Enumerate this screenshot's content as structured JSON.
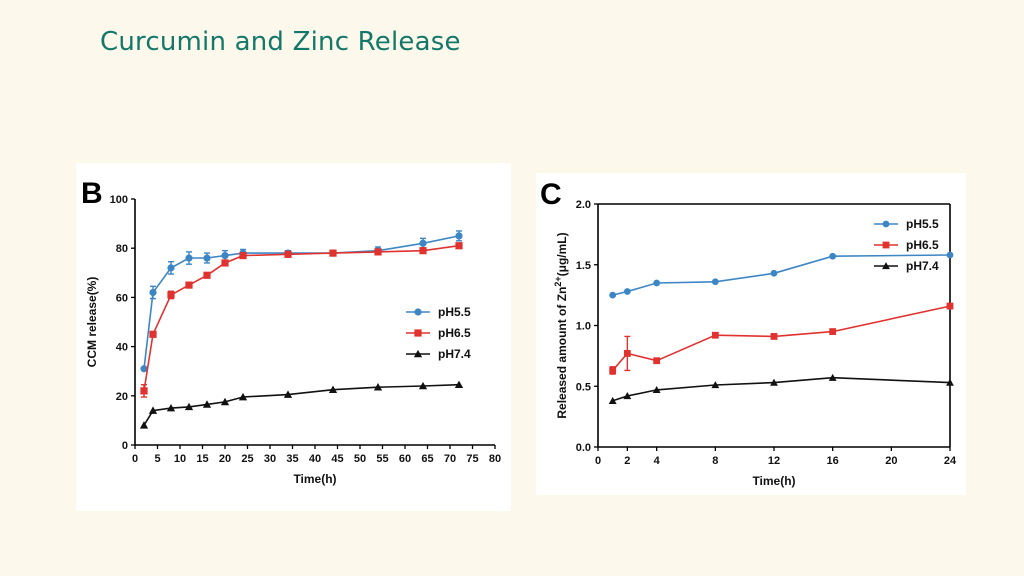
{
  "slide": {
    "title": "Curcumin and Zinc Release"
  },
  "colors": {
    "title": "#13786a",
    "pH5.5": "#3d86c6",
    "pH6.5": "#e0322f",
    "pH7.4": "#111111"
  },
  "chart_data": [
    {
      "panel_label": "B",
      "type": "line",
      "xlabel": "Time(h)",
      "ylabel": "CCM release(%)",
      "xlim": [
        0,
        80
      ],
      "ylim": [
        0,
        100
      ],
      "xticks": [
        0,
        5,
        10,
        15,
        20,
        25,
        30,
        35,
        40,
        45,
        50,
        55,
        60,
        65,
        70,
        75,
        80
      ],
      "yticks": [
        0,
        20,
        40,
        60,
        80,
        100
      ],
      "grid": false,
      "legend_position": "center-right",
      "series": [
        {
          "name": "pH5.5",
          "marker": "circle",
          "x": [
            2,
            4,
            8,
            12,
            16,
            20,
            24,
            34,
            44,
            54,
            64,
            72
          ],
          "y": [
            31,
            62,
            72,
            76,
            76,
            77,
            78,
            78,
            78,
            79,
            82,
            85
          ],
          "err": [
            0,
            2.5,
            2.5,
            2.5,
            2,
            2,
            1.5,
            1,
            1,
            1.5,
            2,
            2
          ]
        },
        {
          "name": "pH6.5",
          "marker": "square",
          "x": [
            2,
            4,
            8,
            12,
            16,
            20,
            24,
            34,
            44,
            54,
            64,
            72
          ],
          "y": [
            22,
            45,
            61,
            65,
            69,
            74,
            77,
            77.5,
            78,
            78.5,
            79,
            81
          ],
          "err": [
            2.5,
            1,
            1.5,
            1,
            1,
            1,
            1,
            1,
            1,
            1,
            1,
            1
          ]
        },
        {
          "name": "pH7.4",
          "marker": "triangle",
          "x": [
            2,
            4,
            8,
            12,
            16,
            20,
            24,
            34,
            44,
            54,
            64,
            72
          ],
          "y": [
            8,
            14,
            15,
            15.5,
            16.5,
            17.5,
            19.5,
            20.5,
            22.5,
            23.5,
            24,
            24.5
          ],
          "err": [
            0,
            0,
            0,
            0,
            0,
            0,
            0,
            0,
            0,
            0,
            0,
            0
          ]
        }
      ]
    },
    {
      "panel_label": "C",
      "type": "line",
      "xlabel": "Time(h)",
      "ylabel_parts": [
        "Released amount of Zn",
        "2+",
        "(μg/mL)"
      ],
      "xlim": [
        0,
        24
      ],
      "ylim": [
        0,
        2.0
      ],
      "xticks": [
        0,
        2,
        4,
        8,
        12,
        16,
        20,
        24
      ],
      "xtick_labels": [
        "0",
        "2",
        "4",
        "8",
        "12",
        "16",
        "20",
        "24"
      ],
      "yticks": [
        0.0,
        0.5,
        1.0,
        1.5,
        2.0
      ],
      "ytick_labels": [
        "0.0",
        "0.5",
        "1.0",
        "1.5",
        "2.0"
      ],
      "grid": false,
      "legend_position": "top-right",
      "series": [
        {
          "name": "pH5.5",
          "marker": "circle",
          "x": [
            1,
            2,
            4,
            8,
            12,
            16,
            24
          ],
          "y": [
            1.25,
            1.28,
            1.35,
            1.36,
            1.43,
            1.57,
            1.58
          ],
          "err": [
            0,
            0,
            0,
            0,
            0,
            0,
            0
          ]
        },
        {
          "name": "pH6.5",
          "marker": "square",
          "x": [
            1,
            2,
            4,
            8,
            12,
            16,
            24
          ],
          "y": [
            0.63,
            0.77,
            0.71,
            0.92,
            0.91,
            0.95,
            1.16
          ],
          "err": [
            0.03,
            0.14,
            0,
            0,
            0,
            0,
            0
          ]
        },
        {
          "name": "pH7.4",
          "marker": "triangle",
          "x": [
            1,
            2,
            4,
            8,
            12,
            16,
            24
          ],
          "y": [
            0.38,
            0.42,
            0.47,
            0.51,
            0.53,
            0.57,
            0.53
          ],
          "err": [
            0,
            0,
            0,
            0,
            0,
            0,
            0
          ]
        }
      ]
    }
  ]
}
